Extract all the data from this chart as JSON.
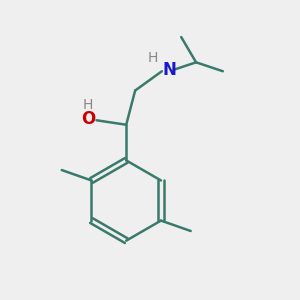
{
  "bg_color": "#efefef",
  "bond_color": "#3a7a6a",
  "atom_colors": {
    "O": "#cc0000",
    "N": "#1a1acc",
    "H_gray": "#888888",
    "C": "#3a7a6a"
  },
  "bond_width": 1.8,
  "figsize": [
    3.0,
    3.0
  ],
  "dpi": 100
}
